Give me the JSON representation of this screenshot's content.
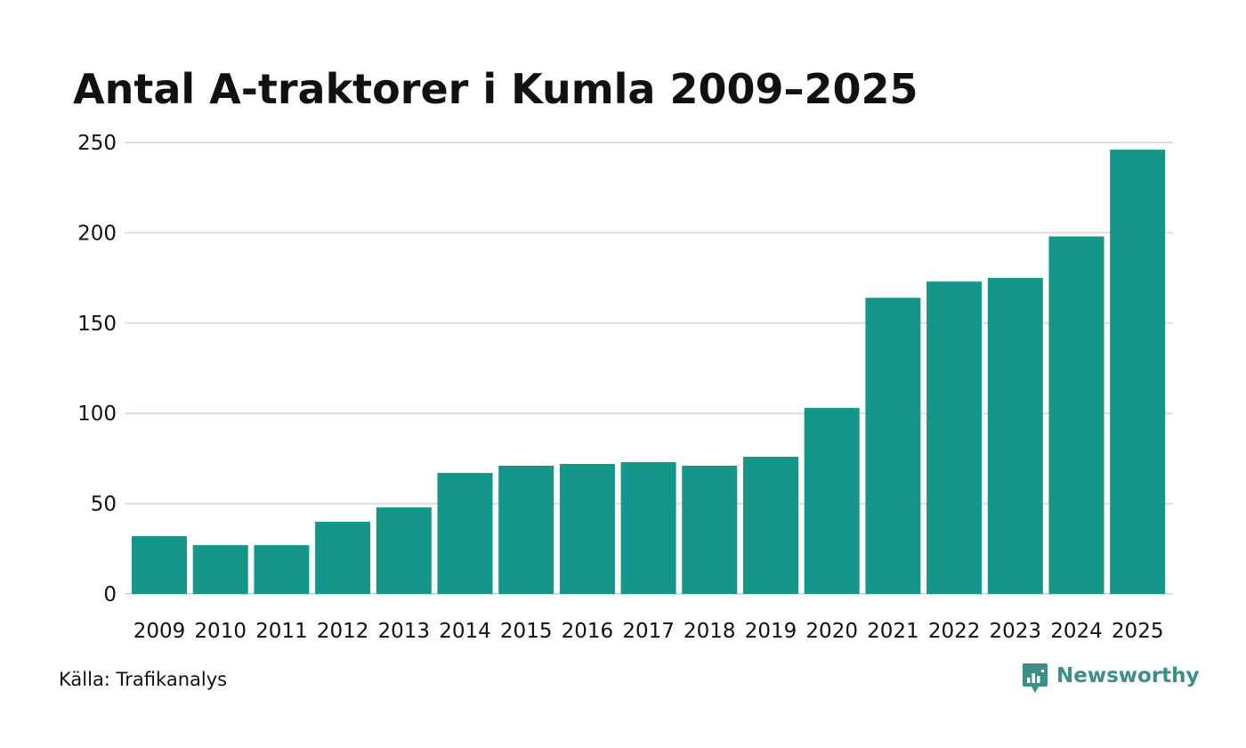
{
  "chart_data": {
    "type": "bar",
    "title": "Antal A-traktorer i Kumla 2009–2025",
    "xlabel": "",
    "ylabel": "",
    "categories": [
      "2009",
      "2010",
      "2011",
      "2012",
      "2013",
      "2014",
      "2015",
      "2016",
      "2017",
      "2018",
      "2019",
      "2020",
      "2021",
      "2022",
      "2023",
      "2024",
      "2025"
    ],
    "values": [
      32,
      27,
      27,
      40,
      48,
      67,
      71,
      72,
      73,
      71,
      76,
      103,
      164,
      173,
      175,
      198,
      246
    ],
    "ylim": [
      0,
      250
    ],
    "yticks": [
      "0",
      "50",
      "100",
      "150",
      "200",
      "250"
    ],
    "grid": true,
    "bar_color": "#149688",
    "grid_color": "#dddddd"
  },
  "footer": {
    "source": "Källa: Trafikanalys",
    "brand": "Newsworthy",
    "brand_color": "#3a8f86",
    "brand_icon": "newsworthy-logo-icon"
  }
}
